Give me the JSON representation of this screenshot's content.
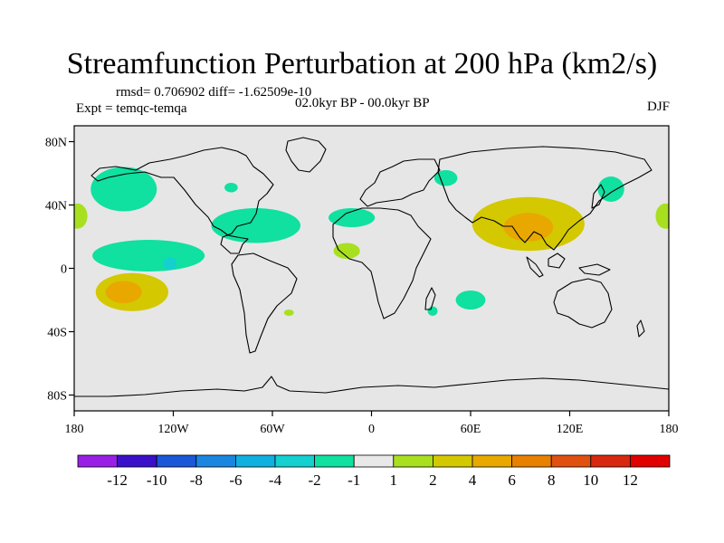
{
  "chart_data": {
    "type": "heatmap",
    "title": "Streamfunction Perturbation at 200 hPa (km2/s)",
    "left_annotation_1": "rmsd= 0.706902 diff= -1.62509e-10",
    "left_annotation_2": "Expt = temqc-temqa",
    "center_annotation": "02.0kyr BP - 00.0kyr BP",
    "right_annotation": "DJF",
    "x_ticks": [
      {
        "lon": -180,
        "label": "180"
      },
      {
        "lon": -120,
        "label": "120W"
      },
      {
        "lon": -60,
        "label": "60W"
      },
      {
        "lon": 0,
        "label": "0"
      },
      {
        "lon": 60,
        "label": "60E"
      },
      {
        "lon": 120,
        "label": "120E"
      },
      {
        "lon": 180,
        "label": "180"
      }
    ],
    "y_ticks": [
      {
        "lat": 80,
        "label": "80N"
      },
      {
        "lat": 40,
        "label": "40N"
      },
      {
        "lat": 0,
        "label": "0"
      },
      {
        "lat": -40,
        "label": "40S"
      },
      {
        "lat": -80,
        "label": "80S"
      }
    ],
    "lon_range": [
      -180,
      180
    ],
    "lat_range": [
      -90,
      90
    ],
    "colorbar": {
      "levels": [
        "-12",
        "-10",
        "-8",
        "-6",
        "-4",
        "-2",
        "-1",
        "1",
        "2",
        "4",
        "6",
        "8",
        "10",
        "12"
      ],
      "colors": [
        "#9a1fe6",
        "#3a10c8",
        "#1a58d8",
        "#1a86e0",
        "#10b0e0",
        "#14d0d0",
        "#10e0a0",
        "#e8e8e8",
        "#a8e020",
        "#d4c800",
        "#e8a800",
        "#e88000",
        "#e05010",
        "#d82810",
        "#e00000"
      ]
    },
    "anomalies": [
      {
        "name": "north-pacific-negative",
        "lon": -150,
        "lat": 50,
        "value": -1.5
      },
      {
        "name": "central-pacific-negative",
        "lon": -135,
        "lat": 8,
        "value": -1.5
      },
      {
        "name": "central-pacific-core",
        "lon": -122,
        "lat": 3,
        "value": -2.5
      },
      {
        "name": "south-pacific-positive",
        "lon": -145,
        "lat": -15,
        "value": 2.5
      },
      {
        "name": "south-pacific-core",
        "lon": -150,
        "lat": -15,
        "value": 4.5
      },
      {
        "name": "west-dateline-positive",
        "lon": -178,
        "lat": 33,
        "value": 1.5
      },
      {
        "name": "east-dateline-positive",
        "lon": 178,
        "lat": 33,
        "value": 1.5
      },
      {
        "name": "great-lakes-negative",
        "lon": -85,
        "lat": 51,
        "value": -1.5
      },
      {
        "name": "caribbean-negative",
        "lon": -70,
        "lat": 27,
        "value": -1.5
      },
      {
        "name": "atlantic-negative",
        "lon": -12,
        "lat": 32,
        "value": -1.5
      },
      {
        "name": "west-africa-positive",
        "lon": -15,
        "lat": 11,
        "value": 1.5
      },
      {
        "name": "brazil-positive",
        "lon": -50,
        "lat": -28,
        "value": 1.5
      },
      {
        "name": "north-caspian-negative",
        "lon": 45,
        "lat": 57,
        "value": -1.5
      },
      {
        "name": "asia-positive",
        "lon": 95,
        "lat": 28,
        "value": 2.5
      },
      {
        "name": "asia-core",
        "lon": 95,
        "lat": 26,
        "value": 4.5
      },
      {
        "name": "japan-negative",
        "lon": 145,
        "lat": 50,
        "value": -1.5
      },
      {
        "name": "south-indian-negative",
        "lon": 60,
        "lat": -20,
        "value": -1.5
      },
      {
        "name": "mozambique-negative",
        "lon": 37,
        "lat": -27,
        "value": -1.5
      }
    ]
  }
}
